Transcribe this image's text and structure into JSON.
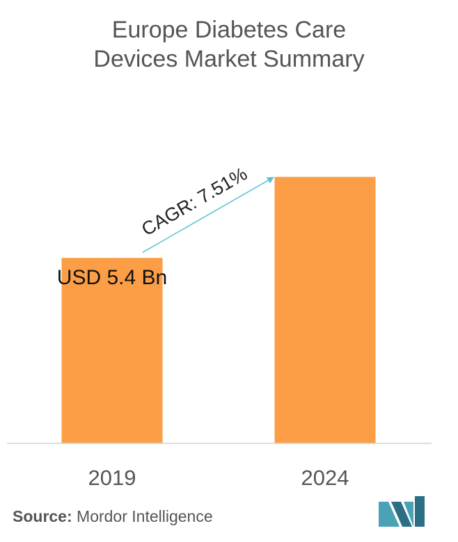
{
  "title_line1": "Europe Diabetes Care",
  "title_line2": "Devices Market Summary",
  "chart_data": {
    "type": "bar",
    "categories": [
      "2019",
      "2024"
    ],
    "values": [
      5.4,
      7.76
    ],
    "ylim": [
      0,
      8.5
    ],
    "bar_color": "#FB9E45",
    "data_labels": [
      "USD 5.4 Bn",
      ""
    ],
    "annotation": "CAGR: 7.51%",
    "arrow_color": "#55C3CC",
    "grid": false
  },
  "source": {
    "label": "Source:",
    "text": "Mordor Intelligence"
  },
  "colors": {
    "logo_teal": "#4AA3B5",
    "logo_dark": "#2C6E84"
  }
}
